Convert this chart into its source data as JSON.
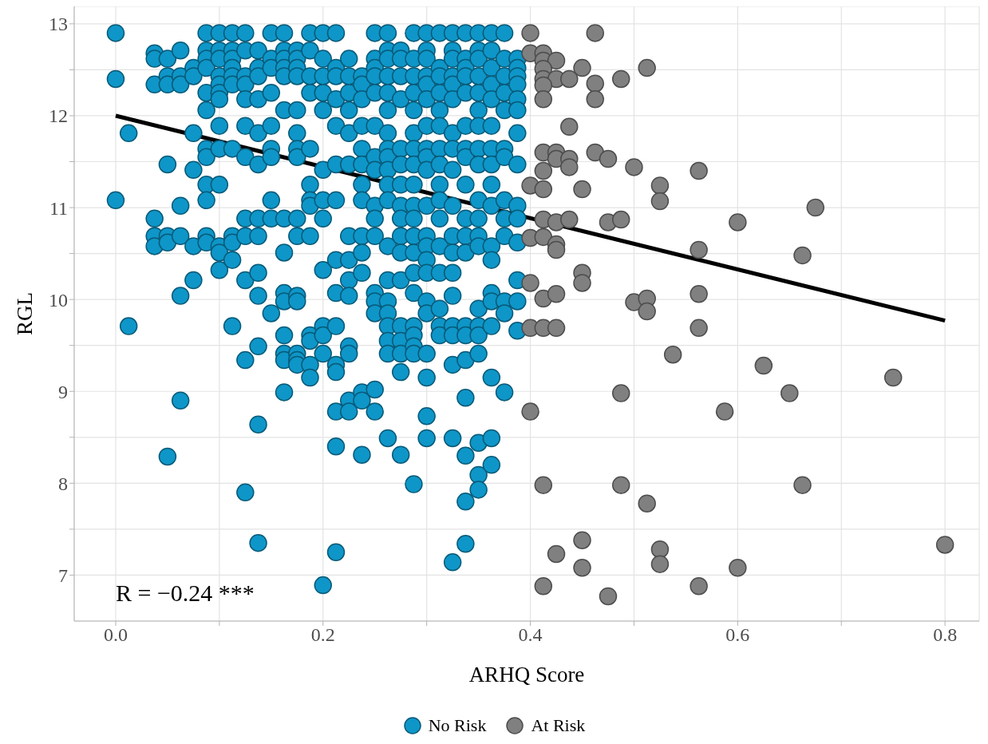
{
  "chart_data": {
    "type": "scatter",
    "xlabel": "ARHQ Score",
    "ylabel": "RGL",
    "xlim": [
      -0.04,
      0.833
    ],
    "ylim": [
      6.5,
      13.19
    ],
    "xticks": [
      {
        "value": 0,
        "label": "0.0"
      },
      {
        "value": 0.1,
        "label": null
      },
      {
        "value": 0.2,
        "label": "0.2"
      },
      {
        "value": 0.3,
        "label": null
      },
      {
        "value": 0.4,
        "label": "0.4"
      },
      {
        "value": 0.5,
        "label": null
      },
      {
        "value": 0.6,
        "label": "0.6"
      },
      {
        "value": 0.7,
        "label": null
      },
      {
        "value": 0.8,
        "label": "0.8"
      }
    ],
    "yticks": [
      7,
      {
        "value": 7.5,
        "label": null
      },
      8,
      {
        "value": 8.5,
        "label": null
      },
      9,
      {
        "value": 9.5,
        "label": null
      },
      10,
      {
        "value": 10.5,
        "label": null
      },
      11,
      {
        "value": 11.5,
        "label": null
      },
      12,
      {
        "value": 12.5,
        "label": null
      },
      13
    ],
    "grid": true,
    "legend": "bottom",
    "marker": "circle",
    "annotations": [
      "R = −0.24 ***"
    ],
    "series": [
      {
        "name": "No Risk",
        "color": "#0e96c8",
        "x": [
          0,
          0,
          0,
          0.0125,
          0.0125,
          0.0375,
          0.0375,
          0.0375,
          0.0375,
          0.0375,
          0.0375,
          0.05,
          0.05,
          0.05,
          0.05,
          0.05,
          0.05,
          0.05,
          0.0625,
          0.0625,
          0.0625,
          0.0625,
          0.0625,
          0.0625,
          0.0625,
          0.075,
          0.075,
          0.075,
          0.075,
          0.075,
          0.075,
          0.0875,
          0.0875,
          0.0875,
          0.0875,
          0.0875,
          0.0875,
          0.0875,
          0.0875,
          0.0875,
          0.0875,
          0.0875,
          0.0875,
          0.1,
          0.1,
          0.1,
          0.1,
          0.1,
          0.1,
          0.1,
          0.1,
          0.1,
          0.1,
          0.1,
          0.1,
          0.1,
          0.1125,
          0.1125,
          0.1125,
          0.1125,
          0.1125,
          0.1125,
          0.1125,
          0.1125,
          0.1125,
          0.1125,
          0.1125,
          0.125,
          0.125,
          0.125,
          0.125,
          0.125,
          0.125,
          0.125,
          0.125,
          0.125,
          0.125,
          0.125,
          0.125,
          0.1375,
          0.1375,
          0.1375,
          0.1375,
          0.1375,
          0.1375,
          0.1375,
          0.1375,
          0.1375,
          0.1375,
          0.1375,
          0.1375,
          0.1375,
          0.15,
          0.15,
          0.15,
          0.15,
          0.15,
          0.15,
          0.15,
          0.15,
          0.15,
          0.15,
          0.1625,
          0.1625,
          0.1625,
          0.1625,
          0.1625,
          0.1625,
          0.1625,
          0.1625,
          0.1625,
          0.1625,
          0.1625,
          0.1625,
          0.1625,
          0.1625,
          0.175,
          0.175,
          0.175,
          0.175,
          0.175,
          0.175,
          0.175,
          0.175,
          0.175,
          0.175,
          0.175,
          0.175,
          0.175,
          0.175,
          0.175,
          0.1875,
          0.1875,
          0.1875,
          0.1875,
          0.1875,
          0.1875,
          0.1875,
          0.1875,
          0.1875,
          0.1875,
          0.1875,
          0.1875,
          0.1875,
          0.2,
          0.2,
          0.2,
          0.2,
          0.2,
          0.2,
          0.2,
          0.2,
          0.2,
          0.2,
          0.2,
          0.2,
          0.2,
          0.2125,
          0.2125,
          0.2125,
          0.2125,
          0.2125,
          0.2125,
          0.2125,
          0.2125,
          0.2125,
          0.2125,
          0.2125,
          0.2125,
          0.2125,
          0.2125,
          0.2125,
          0.225,
          0.225,
          0.225,
          0.225,
          0.225,
          0.225,
          0.225,
          0.225,
          0.225,
          0.225,
          0.225,
          0.225,
          0.225,
          0.225,
          0.2375,
          0.2375,
          0.2375,
          0.2375,
          0.2375,
          0.2375,
          0.2375,
          0.2375,
          0.2375,
          0.2375,
          0.2375,
          0.2375,
          0.2375,
          0.2375,
          0.25,
          0.25,
          0.25,
          0.25,
          0.25,
          0.25,
          0.25,
          0.25,
          0.25,
          0.25,
          0.25,
          0.25,
          0.25,
          0.25,
          0.25,
          0.25,
          0.2625,
          0.2625,
          0.2625,
          0.2625,
          0.2625,
          0.2625,
          0.2625,
          0.2625,
          0.2625,
          0.2625,
          0.2625,
          0.2625,
          0.2625,
          0.2625,
          0.2625,
          0.2625,
          0.2625,
          0.2625,
          0.2625,
          0.2625,
          0.275,
          0.275,
          0.275,
          0.275,
          0.275,
          0.275,
          0.275,
          0.275,
          0.275,
          0.275,
          0.275,
          0.275,
          0.275,
          0.275,
          0.275,
          0.275,
          0.275,
          0.2875,
          0.2875,
          0.2875,
          0.2875,
          0.2875,
          0.2875,
          0.2875,
          0.2875,
          0.2875,
          0.2875,
          0.2875,
          0.2875,
          0.2875,
          0.2875,
          0.2875,
          0.2875,
          0.2875,
          0.2875,
          0.2875,
          0.2875,
          0.3,
          0.3,
          0.3,
          0.3,
          0.3,
          0.3,
          0.3,
          0.3,
          0.3,
          0.3,
          0.3,
          0.3,
          0.3,
          0.3,
          0.3,
          0.3,
          0.3,
          0.3,
          0.3,
          0.3,
          0.3,
          0.3125,
          0.3125,
          0.3125,
          0.3125,
          0.3125,
          0.3125,
          0.3125,
          0.3125,
          0.3125,
          0.3125,
          0.3125,
          0.3125,
          0.3125,
          0.3125,
          0.3125,
          0.3125,
          0.325,
          0.325,
          0.325,
          0.325,
          0.325,
          0.325,
          0.325,
          0.325,
          0.325,
          0.325,
          0.325,
          0.325,
          0.325,
          0.325,
          0.325,
          0.325,
          0.325,
          0.325,
          0.325,
          0.3375,
          0.3375,
          0.3375,
          0.3375,
          0.3375,
          0.3375,
          0.3375,
          0.3375,
          0.3375,
          0.3375,
          0.3375,
          0.3375,
          0.3375,
          0.3375,
          0.3375,
          0.3375,
          0.3375,
          0.3375,
          0.3375,
          0.35,
          0.35,
          0.35,
          0.35,
          0.35,
          0.35,
          0.35,
          0.35,
          0.35,
          0.35,
          0.35,
          0.35,
          0.35,
          0.35,
          0.35,
          0.35,
          0.35,
          0.35,
          0.35,
          0.35,
          0.3625,
          0.3625,
          0.3625,
          0.3625,
          0.3625,
          0.3625,
          0.3625,
          0.3625,
          0.3625,
          0.3625,
          0.3625,
          0.3625,
          0.3625,
          0.3625,
          0.3625,
          0.3625,
          0.3625,
          0.3625,
          0.375,
          0.375,
          0.375,
          0.375,
          0.375,
          0.375,
          0.375,
          0.375,
          0.375,
          0.375,
          0.375,
          0.375,
          0.375,
          0.3875,
          0.3875,
          0.3875,
          0.3875,
          0.3875,
          0.3875,
          0.3875,
          0.3875,
          0.3875,
          0.3875,
          0.3875,
          0.3875,
          0.3875,
          0.3875
        ],
        "values": [
          12.9,
          12.4,
          11.08,
          11.81,
          9.71,
          12.68,
          12.62,
          12.34,
          10.88,
          10.69,
          10.58,
          12.62,
          12.43,
          12.34,
          11.47,
          10.69,
          10.62,
          8.29,
          12.71,
          12.43,
          12.34,
          11.02,
          10.69,
          10.04,
          8.9,
          12.52,
          12.43,
          11.81,
          11.41,
          10.58,
          10.21,
          12.9,
          12.71,
          12.62,
          12.52,
          12.25,
          12.06,
          11.64,
          11.55,
          11.25,
          11.08,
          10.69,
          10.62,
          12.9,
          12.71,
          12.62,
          12.43,
          12.34,
          12.25,
          12.18,
          11.89,
          11.64,
          11.25,
          10.58,
          10.51,
          10.32,
          12.9,
          12.71,
          12.62,
          12.52,
          12.43,
          12.34,
          11.64,
          10.69,
          10.62,
          10.43,
          9.71,
          12.9,
          12.71,
          12.43,
          12.34,
          12.18,
          11.89,
          11.55,
          10.88,
          10.69,
          10.21,
          9.34,
          7.9,
          12.71,
          12.52,
          12.43,
          12.18,
          11.81,
          11.47,
          10.88,
          10.69,
          10.29,
          10.04,
          9.49,
          8.64,
          7.35,
          12.9,
          12.62,
          12.52,
          12.25,
          11.89,
          11.64,
          11.55,
          11.08,
          10.88,
          9.85,
          12.9,
          12.71,
          12.62,
          12.52,
          12.43,
          12.06,
          10.88,
          10.51,
          10.07,
          9.98,
          9.61,
          9.41,
          9.34,
          8.99,
          12.71,
          12.62,
          12.52,
          12.43,
          12.06,
          11.81,
          11.64,
          11.55,
          10.88,
          10.69,
          10.04,
          9.98,
          9.41,
          9.34,
          9.29,
          12.9,
          12.71,
          12.43,
          12.25,
          11.64,
          11.25,
          11.08,
          11.02,
          10.69,
          9.61,
          9.55,
          9.29,
          9.15,
          12.9,
          12.62,
          12.43,
          12.25,
          12.06,
          11.41,
          11.08,
          10.88,
          10.32,
          9.71,
          9.61,
          9.41,
          6.89,
          12.9,
          12.52,
          12.43,
          12.18,
          11.89,
          11.47,
          11.08,
          10.43,
          10.07,
          9.71,
          9.29,
          9.21,
          8.78,
          8.4,
          7.25,
          12.62,
          12.43,
          12.25,
          12.06,
          11.81,
          11.47,
          10.69,
          10.43,
          10.21,
          10.04,
          9.49,
          9.41,
          8.9,
          8.78,
          12.43,
          12.34,
          12.18,
          11.89,
          11.64,
          11.47,
          11.25,
          11.08,
          10.69,
          10.51,
          10.29,
          8.99,
          8.9,
          8.31,
          12.9,
          12.62,
          12.52,
          12.43,
          12.25,
          11.89,
          11.55,
          11.41,
          11.02,
          10.88,
          10.69,
          10.07,
          9.98,
          9.85,
          9.02,
          8.78,
          12.9,
          12.71,
          12.62,
          12.43,
          12.25,
          12.06,
          11.81,
          11.64,
          11.55,
          11.41,
          11.25,
          11.08,
          10.58,
          10.21,
          9.98,
          9.85,
          9.71,
          9.55,
          9.41,
          8.49,
          12.71,
          12.62,
          12.43,
          12.18,
          11.64,
          11.47,
          11.25,
          11.02,
          10.88,
          10.69,
          10.51,
          10.21,
          9.71,
          9.55,
          9.41,
          9.21,
          8.31,
          12.9,
          12.62,
          12.43,
          12.25,
          12.06,
          11.81,
          11.64,
          11.47,
          11.25,
          11.02,
          10.88,
          10.69,
          10.51,
          10.29,
          10.07,
          9.71,
          9.61,
          9.49,
          9.41,
          7.99,
          12.9,
          12.71,
          12.62,
          12.43,
          12.34,
          12.18,
          11.89,
          11.64,
          11.55,
          11.41,
          11.02,
          10.69,
          10.58,
          10.43,
          10.29,
          9.98,
          9.85,
          9.41,
          9.15,
          8.73,
          8.49,
          12.9,
          12.52,
          12.43,
          12.25,
          12.06,
          11.89,
          11.64,
          11.47,
          11.25,
          11.08,
          10.88,
          10.58,
          10.29,
          9.9,
          9.71,
          9.61,
          12.9,
          12.71,
          12.62,
          12.43,
          12.34,
          12.18,
          11.81,
          11.64,
          11.41,
          11.02,
          10.69,
          10.51,
          10.29,
          10.04,
          9.71,
          9.61,
          9.29,
          8.49,
          7.14,
          12.9,
          12.62,
          12.52,
          12.43,
          12.25,
          11.89,
          11.64,
          11.55,
          11.25,
          10.88,
          10.69,
          10.51,
          9.71,
          9.61,
          9.34,
          8.93,
          8.3,
          7.8,
          7.34,
          12.9,
          12.71,
          12.62,
          12.43,
          12.25,
          12.06,
          11.89,
          11.64,
          11.47,
          11.08,
          10.88,
          10.69,
          10.58,
          9.9,
          9.71,
          9.61,
          9.41,
          8.44,
          8.09,
          7.93,
          12.9,
          12.71,
          12.52,
          12.34,
          12.18,
          11.89,
          11.64,
          11.47,
          11.25,
          11.02,
          10.58,
          10.43,
          10.07,
          9.98,
          9.71,
          9.15,
          8.49,
          8.2,
          12.9,
          12.62,
          12.43,
          12.25,
          12.06,
          11.64,
          11.55,
          11.08,
          10.88,
          10.69,
          9.98,
          9.85,
          8.99,
          12.62,
          12.52,
          12.43,
          12.34,
          12.18,
          12.06,
          11.81,
          11.47,
          11.02,
          10.88,
          10.62,
          10.21,
          9.98,
          9.66
        ]
      },
      {
        "name": "At Risk",
        "color": "#808080",
        "x": [
          0.4,
          0.4625,
          0.4,
          0.4125,
          0.4125,
          0.425,
          0.4125,
          0.45,
          0.5125,
          0.4125,
          0.425,
          0.4375,
          0.4875,
          0.4125,
          0.4625,
          0.4125,
          0.4625,
          0.4375,
          0.4125,
          0.425,
          0.425,
          0.4375,
          0.4375,
          0.4625,
          0.475,
          0.5,
          0.5625,
          0.4125,
          0.4,
          0.4125,
          0.45,
          0.525,
          0.525,
          0.675,
          0.4125,
          0.425,
          0.4375,
          0.475,
          0.4875,
          0.6,
          0.4,
          0.4125,
          0.425,
          0.425,
          0.5625,
          0.6625,
          0.45,
          0.45,
          0.4,
          0.4125,
          0.425,
          0.5,
          0.5125,
          0.5125,
          0.5625,
          0.4,
          0.4125,
          0.425,
          0.5625,
          0.5375,
          0.625,
          0.75,
          0.4875,
          0.65,
          0.4,
          0.5875,
          0.4125,
          0.4875,
          0.6625,
          0.5125,
          0.45,
          0.425,
          0.45,
          0.525,
          0.525,
          0.6,
          0.8,
          0.4125,
          0.475,
          0.5625
        ],
        "values": [
          12.9,
          12.9,
          12.68,
          12.68,
          12.6,
          12.6,
          12.51,
          12.52,
          12.52,
          12.4,
          12.4,
          12.4,
          12.4,
          12.33,
          12.35,
          12.18,
          12.18,
          11.88,
          11.6,
          11.6,
          11.53,
          11.53,
          11.44,
          11.6,
          11.53,
          11.44,
          11.4,
          11.4,
          11.24,
          11.2,
          11.2,
          11.24,
          11.07,
          11.0,
          10.87,
          10.84,
          10.87,
          10.84,
          10.87,
          10.84,
          10.67,
          10.68,
          10.6,
          10.54,
          10.54,
          10.48,
          10.29,
          10.18,
          10.18,
          10.01,
          10.06,
          9.97,
          10.01,
          9.87,
          10.06,
          9.69,
          9.69,
          9.69,
          9.69,
          9.4,
          9.28,
          9.15,
          8.98,
          8.98,
          8.78,
          8.78,
          7.98,
          7.98,
          7.98,
          7.78,
          7.38,
          7.23,
          7.08,
          7.28,
          7.12,
          7.08,
          7.33,
          6.88,
          6.77,
          6.88
        ]
      },
      {
        "type": "line",
        "marker": "none",
        "color": "#000000",
        "x": [
          0,
          0.8
        ],
        "values": [
          12.0,
          9.77
        ]
      }
    ]
  }
}
